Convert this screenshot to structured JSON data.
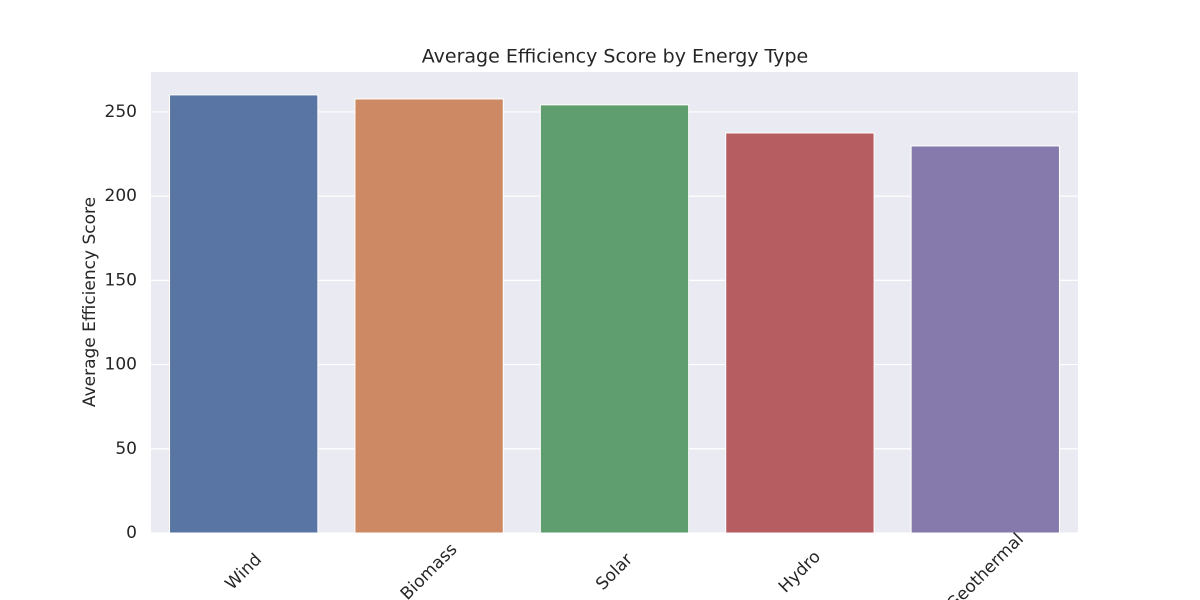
{
  "chart_data": {
    "type": "bar",
    "title": "Average Efficiency Score by Energy Type",
    "y_label": "Average Efficiency Score",
    "categories": [
      "Wind",
      "Biomass",
      "Solar",
      "Hydro",
      "Geothermal"
    ],
    "values": [
      260.1,
      257.7,
      254.2,
      237.5,
      229.8
    ],
    "colors": [
      "#5975a4",
      "#cc8963",
      "#5f9e6e",
      "#b55d60",
      "#857aab"
    ],
    "ylim": [
      0,
      273.7
    ],
    "yticks": [
      0,
      50,
      100,
      150,
      200,
      250
    ],
    "grid": true
  }
}
